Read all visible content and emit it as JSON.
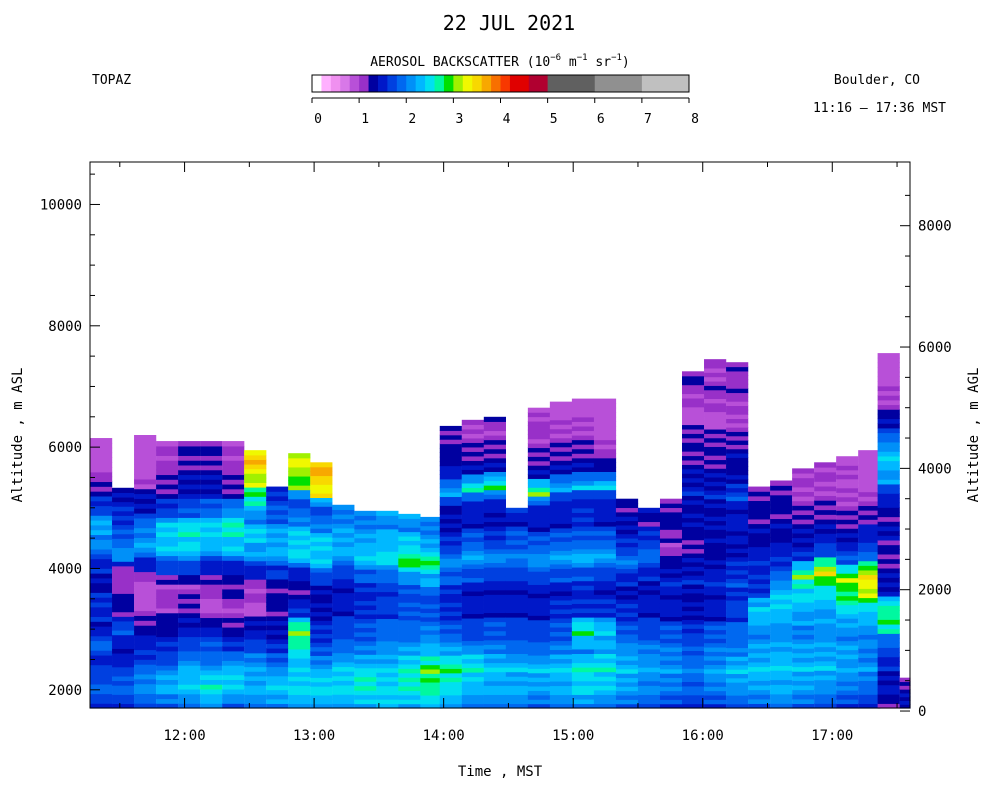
{
  "chart_data": {
    "type": "heatmap",
    "title": "22 JUL 2021",
    "instrument": "TOPAZ",
    "location": "Boulder, CO",
    "time_range": "11:16 – 17:36 MST",
    "colorbar": {
      "label_main": "AEROSOL BACKSCATTER (10",
      "label_exp1": "−6",
      "label_mid1": " m",
      "label_exp2": "−1",
      "label_mid2": " sr",
      "label_exp3": "−1",
      "label_end": ")",
      "ticks": [
        0,
        1,
        2,
        3,
        4,
        5,
        6,
        7,
        8
      ],
      "bins": [
        {
          "from": 0.0,
          "to": 0.2,
          "color": "#ffffff"
        },
        {
          "from": 0.2,
          "to": 0.4,
          "color": "#ffb0ff"
        },
        {
          "from": 0.4,
          "to": 0.6,
          "color": "#f090f0"
        },
        {
          "from": 0.6,
          "to": 0.8,
          "color": "#d878e8"
        },
        {
          "from": 0.8,
          "to": 1.0,
          "color": "#b850d8"
        },
        {
          "from": 1.0,
          "to": 1.2,
          "color": "#9830c8"
        },
        {
          "from": 1.2,
          "to": 1.4,
          "color": "#0000a0"
        },
        {
          "from": 1.4,
          "to": 1.6,
          "color": "#0018c8"
        },
        {
          "from": 1.6,
          "to": 1.8,
          "color": "#0040e0"
        },
        {
          "from": 1.8,
          "to": 2.0,
          "color": "#0068f0"
        },
        {
          "from": 2.0,
          "to": 2.2,
          "color": "#0090f8"
        },
        {
          "from": 2.2,
          "to": 2.4,
          "color": "#00b8ff"
        },
        {
          "from": 2.4,
          "to": 2.6,
          "color": "#00e0f0"
        },
        {
          "from": 2.6,
          "to": 2.8,
          "color": "#00f8a0"
        },
        {
          "from": 2.8,
          "to": 3.0,
          "color": "#00e000"
        },
        {
          "from": 3.0,
          "to": 3.2,
          "color": "#a0f000"
        },
        {
          "from": 3.2,
          "to": 3.4,
          "color": "#f0f800"
        },
        {
          "from": 3.4,
          "to": 3.6,
          "color": "#f8d800"
        },
        {
          "from": 3.6,
          "to": 3.8,
          "color": "#f8a800"
        },
        {
          "from": 3.8,
          "to": 4.0,
          "color": "#f87000"
        },
        {
          "from": 4.0,
          "to": 4.2,
          "color": "#f83800"
        },
        {
          "from": 4.2,
          "to": 4.6,
          "color": "#e00000"
        },
        {
          "from": 4.6,
          "to": 5.0,
          "color": "#b00030"
        },
        {
          "from": 5.0,
          "to": 6.0,
          "color": "#606060"
        },
        {
          "from": 6.0,
          "to": 7.0,
          "color": "#909090"
        },
        {
          "from": 7.0,
          "to": 8.0,
          "color": "#c0c0c0"
        }
      ]
    },
    "xlabel": "Time , MST",
    "ylabel_left": "Altitude , m ASL",
    "ylabel_right": "Altitude , m AGL",
    "x_ticks": [
      "12:00",
      "13:00",
      "14:00",
      "15:00",
      "16:00",
      "17:00"
    ],
    "x_tick_hours": [
      12,
      13,
      14,
      15,
      16,
      17
    ],
    "xlim_hours": [
      11.27,
      17.6
    ],
    "ylim_asl": [
      1700,
      10700
    ],
    "y_ticks_left": [
      2000,
      4000,
      6000,
      8000,
      10000
    ],
    "y_ticks_right": [
      0,
      2000,
      4000,
      6000,
      8000
    ],
    "agl_offset_m": 1650,
    "column_width_hours": 0.1667,
    "columns": [
      {
        "t": 11.27,
        "top": 6150,
        "profile": [
          1.6,
          1.8,
          1.5,
          1.9,
          1.4,
          1.7,
          1.3,
          1.5,
          2.0,
          2.2,
          1.8,
          1.3,
          1.0,
          0.8
        ]
      },
      {
        "t": 11.44,
        "top": 5330,
        "profile": [
          1.7,
          1.9,
          1.6,
          1.4,
          1.8,
          1.3,
          1.2,
          0.9,
          2.1,
          1.9,
          1.6,
          1.4
        ]
      },
      {
        "t": 11.61,
        "top": 6200,
        "profile": [
          1.8,
          2.1,
          1.7,
          1.5,
          1.3,
          0.9,
          0.8,
          1.4,
          2.2,
          2.0,
          1.5,
          1.2,
          0.5,
          0.4
        ]
      },
      {
        "t": 11.78,
        "top": 6100,
        "profile": [
          1.9,
          2.3,
          1.8,
          1.6,
          1.3,
          1.1,
          1.0,
          1.5,
          2.3,
          2.5,
          1.8,
          1.3,
          1.2,
          1.0
        ]
      },
      {
        "t": 11.95,
        "top": 6100,
        "profile": [
          2.0,
          2.4,
          2.1,
          1.7,
          1.5,
          1.2,
          1.0,
          1.6,
          2.4,
          2.6,
          1.9,
          1.4,
          1.3,
          1.2
        ]
      },
      {
        "t": 12.12,
        "top": 6100,
        "profile": [
          2.2,
          2.6,
          2.0,
          1.8,
          1.4,
          0.9,
          1.1,
          1.3,
          2.2,
          2.5,
          2.0,
          1.5,
          1.3,
          1.2
        ]
      },
      {
        "t": 12.29,
        "top": 6100,
        "profile": [
          1.9,
          2.5,
          2.1,
          1.6,
          1.3,
          1.0,
          1.2,
          1.4,
          2.3,
          2.6,
          2.2,
          1.3,
          1.2,
          1.0
        ]
      },
      {
        "t": 12.46,
        "top": 5950,
        "profile": [
          2.0,
          2.3,
          2.2,
          1.7,
          1.5,
          0.9,
          1.0,
          1.3,
          2.1,
          2.4,
          2.0,
          2.6,
          3.1,
          3.5
        ]
      },
      {
        "t": 12.63,
        "top": 5350,
        "profile": [
          2.1,
          2.4,
          2.0,
          1.6,
          1.4,
          1.3,
          1.2,
          1.5,
          2.2,
          2.3,
          1.9,
          1.6
        ]
      },
      {
        "t": 12.8,
        "top": 5900,
        "profile": [
          2.2,
          2.5,
          2.3,
          2.6,
          3.0,
          1.6,
          1.3,
          1.4,
          2.4,
          2.5,
          2.1,
          1.6,
          2.9,
          3.2
        ]
      },
      {
        "t": 12.97,
        "top": 5750,
        "profile": [
          2.3,
          2.4,
          2.2,
          1.8,
          1.6,
          1.4,
          1.3,
          1.5,
          2.3,
          2.4,
          2.1,
          1.6,
          3.3,
          3.6
        ]
      },
      {
        "t": 13.14,
        "top": 5050,
        "profile": [
          2.2,
          2.5,
          2.3,
          1.9,
          1.7,
          1.5,
          1.4,
          1.6,
          2.2,
          2.3,
          2.0
        ]
      },
      {
        "t": 13.31,
        "top": 4950,
        "profile": [
          2.3,
          2.6,
          2.4,
          2.0,
          1.8,
          1.6,
          1.5,
          1.7,
          2.4,
          2.3,
          2.0
        ]
      },
      {
        "t": 13.48,
        "top": 4950,
        "profile": [
          2.4,
          2.5,
          2.3,
          2.1,
          1.9,
          1.7,
          1.6,
          1.8,
          2.5,
          2.3,
          2.1
        ]
      },
      {
        "t": 13.65,
        "top": 4900,
        "profile": [
          2.3,
          2.6,
          2.5,
          2.2,
          1.9,
          1.8,
          1.7,
          2.0,
          2.9,
          2.4,
          2.1
        ]
      },
      {
        "t": 13.82,
        "top": 4850,
        "profile": [
          2.4,
          2.7,
          2.9,
          2.3,
          2.0,
          1.8,
          1.7,
          2.1,
          2.8,
          2.3,
          2.0
        ]
      },
      {
        "t": 13.97,
        "top": 6350,
        "profile": [
          2.2,
          2.5,
          2.7,
          2.2,
          1.8,
          1.6,
          1.5,
          1.8,
          2.1,
          1.7,
          1.4,
          1.3,
          2.2,
          1.5,
          1.3,
          1.2
        ]
      },
      {
        "t": 14.14,
        "top": 6450,
        "profile": [
          2.0,
          2.3,
          2.6,
          2.1,
          1.7,
          1.5,
          1.4,
          1.7,
          2.2,
          1.8,
          1.5,
          1.4,
          2.6,
          1.4,
          1.2,
          1.0
        ]
      },
      {
        "t": 14.31,
        "top": 6500,
        "profile": [
          2.1,
          2.2,
          2.4,
          2.0,
          1.8,
          1.5,
          1.4,
          1.6,
          2.1,
          1.7,
          1.4,
          1.5,
          2.8,
          1.3,
          1.2,
          1.1
        ]
      },
      {
        "t": 14.48,
        "top": 5000,
        "profile": [
          2.0,
          2.2,
          2.3,
          1.9,
          1.7,
          1.5,
          1.4,
          1.6,
          2.0,
          1.8,
          1.5
        ]
      },
      {
        "t": 14.65,
        "top": 6650,
        "profile": [
          1.9,
          2.2,
          2.3,
          1.9,
          1.7,
          1.5,
          1.4,
          1.6,
          2.1,
          1.8,
          1.5,
          1.4,
          2.9,
          1.4,
          1.2,
          1.1,
          1.0
        ]
      },
      {
        "t": 14.82,
        "top": 6750,
        "profile": [
          2.0,
          2.3,
          2.4,
          2.0,
          1.8,
          1.6,
          1.4,
          1.7,
          2.2,
          1.9,
          1.5,
          1.4,
          2.2,
          1.3,
          1.2,
          1.0,
          0.9
        ]
      },
      {
        "t": 14.99,
        "top": 6800,
        "profile": [
          2.1,
          2.5,
          2.6,
          2.0,
          2.8,
          1.6,
          1.5,
          1.7,
          2.3,
          1.9,
          1.6,
          1.4,
          2.3,
          1.3,
          1.2,
          1.0,
          0.9
        ]
      },
      {
        "t": 15.16,
        "top": 6800,
        "profile": [
          2.0,
          2.4,
          2.5,
          2.2,
          2.4,
          1.7,
          1.5,
          1.6,
          2.2,
          1.8,
          1.5,
          1.4,
          2.4,
          1.3,
          1.1,
          0.8,
          0.7
        ]
      },
      {
        "t": 15.33,
        "top": 5150,
        "profile": [
          1.9,
          2.2,
          2.3,
          2.1,
          1.8,
          1.6,
          1.4,
          1.5,
          2.0,
          1.7,
          1.4,
          1.3
        ]
      },
      {
        "t": 15.5,
        "top": 5000,
        "profile": [
          1.8,
          2.1,
          2.2,
          2.0,
          1.7,
          1.5,
          1.4,
          1.5,
          1.9,
          1.6,
          1.3
        ]
      },
      {
        "t": 15.67,
        "top": 5150,
        "profile": [
          1.7,
          2.0,
          2.1,
          1.9,
          1.8,
          1.5,
          1.4,
          1.6,
          1.3,
          1.0,
          1.3,
          1.2
        ]
      },
      {
        "t": 15.84,
        "top": 7250,
        "profile": [
          1.6,
          1.9,
          2.0,
          1.8,
          1.7,
          1.4,
          1.3,
          1.5,
          1.3,
          1.2,
          1.4,
          1.3,
          1.5,
          1.3,
          1.2,
          1.3,
          0.9,
          1.0,
          1.2
        ]
      },
      {
        "t": 16.01,
        "top": 7450,
        "profile": [
          1.7,
          2.0,
          2.2,
          1.9,
          1.8,
          1.5,
          1.4,
          1.6,
          1.4,
          1.3,
          1.4,
          1.3,
          1.6,
          1.3,
          1.2,
          1.3,
          0.9,
          1.0,
          1.1,
          1.0
        ]
      },
      {
        "t": 16.18,
        "top": 7400,
        "profile": [
          1.8,
          2.1,
          2.3,
          2.0,
          1.9,
          1.7,
          1.6,
          1.7,
          1.5,
          1.4,
          1.5,
          1.4,
          1.7,
          1.4,
          1.3,
          1.3,
          1.0,
          1.0,
          1.2,
          1.1
        ]
      },
      {
        "t": 16.35,
        "top": 5350,
        "profile": [
          1.9,
          2.2,
          2.4,
          2.1,
          2.0,
          2.5,
          1.7,
          1.6,
          1.5,
          1.3,
          1.3,
          1.2
        ]
      },
      {
        "t": 16.52,
        "top": 5450,
        "profile": [
          2.0,
          2.3,
          2.4,
          2.2,
          2.1,
          2.4,
          2.3,
          1.7,
          1.5,
          1.3,
          1.3,
          1.2
        ]
      },
      {
        "t": 16.69,
        "top": 5650,
        "profile": [
          1.9,
          2.2,
          2.3,
          2.1,
          2.0,
          2.3,
          2.4,
          2.9,
          1.6,
          1.4,
          1.2,
          1.1,
          1.0
        ]
      },
      {
        "t": 16.86,
        "top": 5750,
        "profile": [
          1.8,
          2.1,
          2.3,
          2.2,
          2.1,
          2.3,
          2.5,
          3.3,
          1.7,
          1.4,
          1.2,
          1.1,
          1.0
        ]
      },
      {
        "t": 17.03,
        "top": 5850,
        "profile": [
          1.7,
          2.0,
          2.2,
          2.1,
          2.0,
          2.4,
          2.8,
          3.1,
          1.8,
          1.4,
          1.3,
          1.0,
          1.0,
          0.9
        ]
      },
      {
        "t": 17.2,
        "top": 5950,
        "profile": [
          1.6,
          1.9,
          2.1,
          2.0,
          2.1,
          2.4,
          3.2,
          3.4,
          1.9,
          1.5,
          1.3,
          1.1,
          0.7,
          0.6
        ]
      },
      {
        "t": 17.35,
        "top": 7550,
        "profile": [
          1.3,
          1.4,
          1.5,
          1.7,
          2.6,
          2.9,
          1.5,
          1.3,
          1.2,
          1.4,
          1.3,
          1.5,
          2.1,
          2.4,
          2.0,
          1.5,
          1.0,
          0.9,
          0.8
        ]
      },
      {
        "t": 17.52,
        "top": 2200,
        "profile": [
          1.4,
          1.2
        ]
      }
    ]
  }
}
